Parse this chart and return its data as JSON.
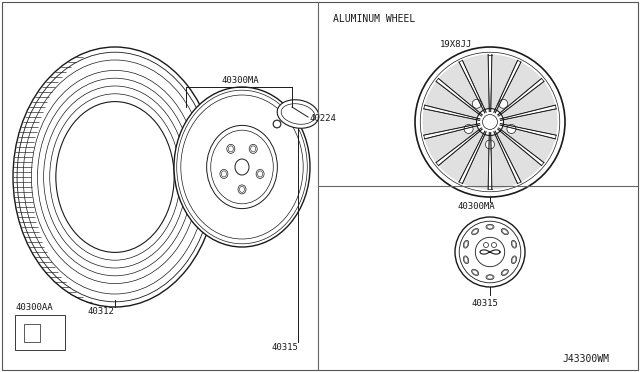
{
  "bg_color": "#ffffff",
  "line_color": "#1a1a1a",
  "border_color": "#666666",
  "labels": {
    "40300MA_top": "40300MA",
    "40224": "40224",
    "40312": "40312",
    "40300AA": "40300AA",
    "40315_left": "40315",
    "aluminum_wheel": "ALUMINUM WHEEL",
    "19x8JJ": "19X8JJ",
    "40300MA_right": "40300MA",
    "40315_right": "40315",
    "diagram_id": "J43300WM"
  },
  "font_size_tiny": 6.0,
  "font_size_small": 6.5,
  "font_size_label": 7.0
}
